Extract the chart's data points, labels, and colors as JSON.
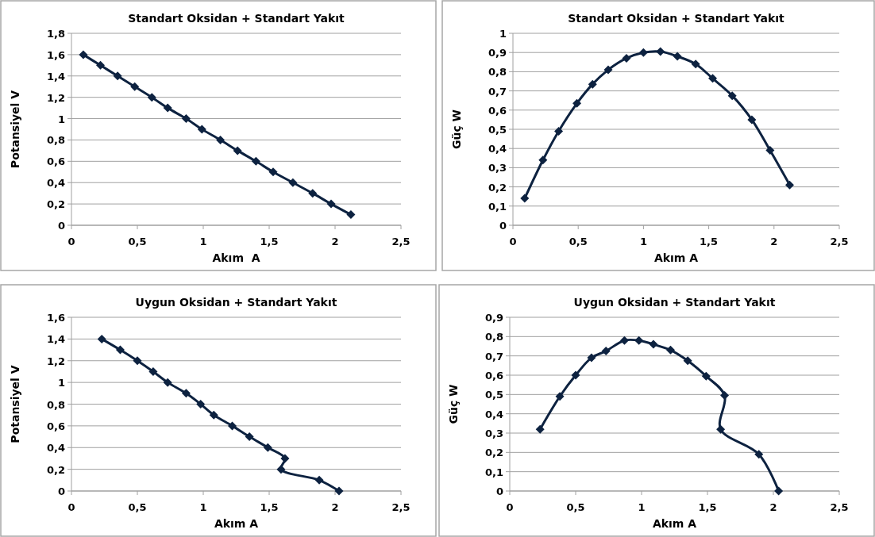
{
  "chart_data": [
    {
      "type": "line",
      "title": "Standart Oksidan + Standart Yakıt",
      "xlabel": "Akım  A",
      "ylabel": "Potansiyel V",
      "grid": "y",
      "marker": "diamond",
      "line_style": "solid",
      "x": [
        0.09,
        0.22,
        0.35,
        0.48,
        0.61,
        0.73,
        0.87,
        0.99,
        1.13,
        1.26,
        1.4,
        1.53,
        1.68,
        1.83,
        1.97,
        2.12
      ],
      "series": [
        {
          "color": "#0d2240",
          "values": [
            1.6,
            1.5,
            1.4,
            1.3,
            1.2,
            1.1,
            1.0,
            0.9,
            0.8,
            0.7,
            0.6,
            0.5,
            0.4,
            0.3,
            0.2,
            0.1
          ]
        }
      ],
      "xlim": [
        0,
        2.5
      ],
      "xticks": [
        0,
        {
          "value": 0.5,
          "label": "0,5"
        },
        1,
        {
          "value": 1.5,
          "label": "1,5"
        },
        2,
        {
          "value": 2.5,
          "label": "2,5"
        }
      ],
      "ylim": [
        0,
        1.8
      ],
      "yticks": [
        {
          "value": 0,
          "label": "0"
        },
        {
          "value": 0.2,
          "label": "0,2"
        },
        {
          "value": 0.4,
          "label": "0,4"
        },
        {
          "value": 0.6,
          "label": "0,6"
        },
        {
          "value": 0.8,
          "label": "0,8"
        },
        {
          "value": 1,
          "label": "1"
        },
        {
          "value": 1.2,
          "label": "1,2"
        },
        {
          "value": 1.4,
          "label": "1,4"
        },
        {
          "value": 1.6,
          "label": "1,6"
        },
        {
          "value": 1.8,
          "label": "1,8"
        }
      ]
    },
    {
      "type": "line",
      "title": "Standart Oksidan + Standart Yakıt",
      "xlabel": "Akım A",
      "ylabel": "Güç W",
      "grid": "y",
      "marker": "diamond",
      "line_style": "solid",
      "x": [
        0.09,
        0.23,
        0.35,
        0.49,
        0.61,
        0.73,
        0.87,
        1.0,
        1.13,
        1.26,
        1.4,
        1.53,
        1.68,
        1.83,
        1.97,
        2.12
      ],
      "series": [
        {
          "color": "#0d2240",
          "values": [
            0.14,
            0.34,
            0.49,
            0.635,
            0.735,
            0.81,
            0.87,
            0.9,
            0.905,
            0.88,
            0.84,
            0.765,
            0.675,
            0.55,
            0.39,
            0.21
          ]
        }
      ],
      "xlim": [
        0,
        2.5
      ],
      "xticks": [
        0,
        {
          "value": 0.5,
          "label": "0,5"
        },
        1,
        {
          "value": 1.5,
          "label": "1,5"
        },
        2,
        {
          "value": 2.5,
          "label": "2,5"
        }
      ],
      "ylim": [
        0,
        1
      ],
      "yticks": [
        {
          "value": 0,
          "label": "0"
        },
        {
          "value": 0.1,
          "label": "0,1"
        },
        {
          "value": 0.2,
          "label": "0,2"
        },
        {
          "value": 0.3,
          "label": "0,3"
        },
        {
          "value": 0.4,
          "label": "0,4"
        },
        {
          "value": 0.5,
          "label": "0,5"
        },
        {
          "value": 0.6,
          "label": "0,6"
        },
        {
          "value": 0.7,
          "label": "0,7"
        },
        {
          "value": 0.8,
          "label": "0,8"
        },
        {
          "value": 0.9,
          "label": "0,9"
        },
        {
          "value": 1,
          "label": "1"
        }
      ]
    },
    {
      "type": "line",
      "title": "Uygun Oksidan + Standart Yakıt",
      "xlabel": "Akım A",
      "ylabel": "Potansiyel V",
      "grid": "y",
      "marker": "diamond",
      "line_style": "solid",
      "x": [
        0.23,
        0.37,
        0.5,
        0.62,
        0.73,
        0.87,
        0.98,
        1.08,
        1.22,
        1.35,
        1.49,
        1.62,
        1.59,
        1.88,
        2.03
      ],
      "series": [
        {
          "color": "#0d2240",
          "values": [
            1.4,
            1.3,
            1.2,
            1.1,
            1.0,
            0.9,
            0.8,
            0.7,
            0.6,
            0.5,
            0.4,
            0.3,
            0.2,
            0.1,
            0
          ]
        }
      ],
      "xlim": [
        0,
        2.5
      ],
      "xticks": [
        0,
        {
          "value": 0.5,
          "label": "0,5"
        },
        1,
        {
          "value": 1.5,
          "label": "1,5"
        },
        2,
        {
          "value": 2.5,
          "label": "2,5"
        }
      ],
      "ylim": [
        0,
        1.6
      ],
      "yticks": [
        {
          "value": 0,
          "label": "0"
        },
        {
          "value": 0.2,
          "label": "0,2"
        },
        {
          "value": 0.4,
          "label": "0,4"
        },
        {
          "value": 0.6,
          "label": "0,6"
        },
        {
          "value": 0.8,
          "label": "0,8"
        },
        {
          "value": 1,
          "label": "1"
        },
        {
          "value": 1.2,
          "label": "1,2"
        },
        {
          "value": 1.4,
          "label": "1,4"
        },
        {
          "value": 1.6,
          "label": "1,6"
        }
      ]
    },
    {
      "type": "line",
      "title": "Uygun Oksidan + Standart Yakıt",
      "xlabel": "Akım A",
      "ylabel": "Güç W",
      "grid": "y",
      "marker": "diamond",
      "line_style": "solid",
      "x": [
        0.23,
        0.38,
        0.5,
        0.62,
        0.73,
        0.87,
        0.98,
        1.09,
        1.22,
        1.35,
        1.49,
        1.63,
        1.6,
        1.89,
        2.04
      ],
      "series": [
        {
          "color": "#0d2240",
          "values": [
            0.32,
            0.49,
            0.6,
            0.69,
            0.725,
            0.78,
            0.78,
            0.76,
            0.73,
            0.675,
            0.595,
            0.495,
            0.32,
            0.19,
            0
          ]
        }
      ],
      "xlim": [
        0,
        2.5
      ],
      "xticks": [
        0,
        {
          "value": 0.5,
          "label": "0,5"
        },
        1,
        {
          "value": 1.5,
          "label": "1,5"
        },
        2,
        {
          "value": 2.5,
          "label": "2,5"
        }
      ],
      "ylim": [
        0,
        0.9
      ],
      "yticks": [
        {
          "value": 0,
          "label": "0"
        },
        {
          "value": 0.1,
          "label": "0,1"
        },
        {
          "value": 0.2,
          "label": "0,2"
        },
        {
          "value": 0.3,
          "label": "0,3"
        },
        {
          "value": 0.4,
          "label": "0,4"
        },
        {
          "value": 0.5,
          "label": "0,5"
        },
        {
          "value": 0.6,
          "label": "0,6"
        },
        {
          "value": 0.7,
          "label": "0,7"
        },
        {
          "value": 0.8,
          "label": "0,8"
        },
        {
          "value": 0.9,
          "label": "0,9"
        }
      ]
    }
  ]
}
